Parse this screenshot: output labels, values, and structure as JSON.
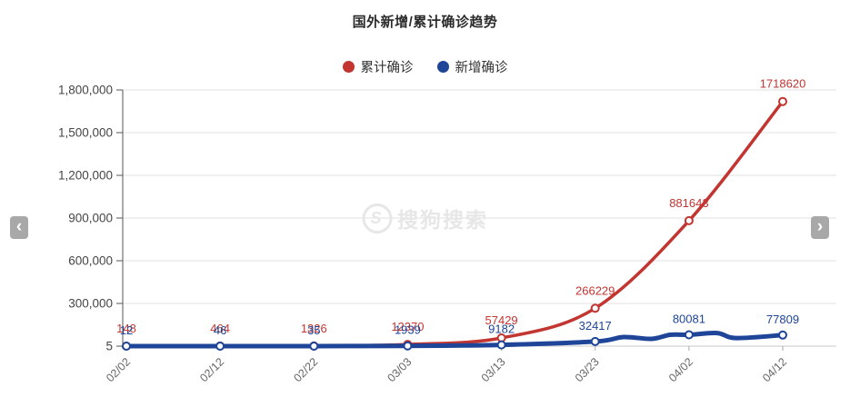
{
  "title": "国外新增/累计确诊趋势",
  "legend": {
    "items": [
      {
        "label": "累计确诊",
        "color": "#c23531"
      },
      {
        "label": "新增确诊",
        "color": "#1e4598"
      }
    ]
  },
  "watermark": {
    "text": "搜狗搜索",
    "logo_letter": "S"
  },
  "nav": {
    "prev_symbol": "‹",
    "next_symbol": "›"
  },
  "chart_data": {
    "type": "line",
    "title": "国外新增/累计确诊趋势",
    "xlabel": "",
    "ylabel": "",
    "x": [
      "02/02",
      "02/12",
      "02/22",
      "03/03",
      "03/13",
      "03/23",
      "04/02",
      "04/12"
    ],
    "series": [
      {
        "name": "累计确诊",
        "color": "#c23531",
        "values": [
          148,
          464,
          1326,
          12370,
          57429,
          266229,
          881643,
          1718620
        ]
      },
      {
        "name": "新增确诊",
        "color": "#1e4598",
        "values": [
          12,
          46,
          35,
          1939,
          9182,
          32417,
          80081,
          77809
        ],
        "estimated_intermediate": [
          {
            "day": 53,
            "value": 64000
          },
          {
            "day": 56,
            "value": 51000
          },
          {
            "day": 58,
            "value": 80000
          },
          {
            "day": 63,
            "value": 92000
          },
          {
            "day": 65,
            "value": 57000
          }
        ]
      }
    ],
    "ylim": [
      0,
      1800000
    ],
    "y_ticks": [
      {
        "value": 5,
        "label": "5",
        "grid": false
      },
      {
        "value": 300000,
        "label": "300,000",
        "grid": true
      },
      {
        "value": 600000,
        "label": "600,000",
        "grid": true
      },
      {
        "value": 900000,
        "label": "900,000",
        "grid": true
      },
      {
        "value": 1200000,
        "label": "1,200,000",
        "grid": true
      },
      {
        "value": 1500000,
        "label": "1,500,000",
        "grid": true
      },
      {
        "value": 1800000,
        "label": "1,800,000",
        "grid": true
      }
    ],
    "legend_position": "top",
    "grid": true
  }
}
